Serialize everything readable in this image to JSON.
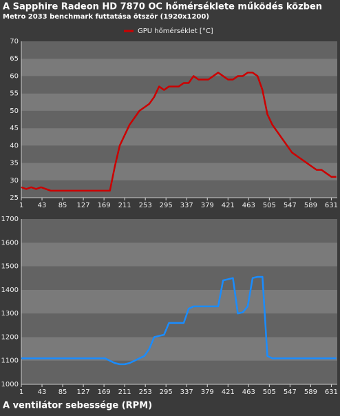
{
  "chart_data": [
    {
      "type": "line",
      "title": "A Sapphire Radeon HD 7870 OC hőmérséklete működés közben",
      "subtitle": "Metro 2033 benchmark futtatása ötször (1920x1200)",
      "x": [
        1,
        11,
        21,
        31,
        41,
        51,
        61,
        71,
        81,
        91,
        101,
        111,
        121,
        131,
        141,
        151,
        161,
        171,
        181,
        191,
        201,
        211,
        221,
        231,
        241,
        251,
        261,
        271,
        281,
        291,
        301,
        311,
        321,
        331,
        341,
        351,
        361,
        371,
        381,
        391,
        401,
        411,
        421,
        431,
        441,
        451,
        461,
        471,
        481,
        491,
        501,
        511,
        521,
        531,
        541,
        551,
        561,
        571,
        581,
        591,
        601,
        611,
        621,
        631,
        641
      ],
      "series": [
        {
          "name": "GPU hőmérséklet [°C]",
          "color": "#cc0000",
          "values": [
            28,
            27.5,
            28,
            27.5,
            28,
            27.5,
            27,
            27,
            27,
            27,
            27,
            27,
            27,
            27,
            27,
            27,
            27,
            27,
            27,
            34,
            40,
            43,
            46,
            48,
            50,
            51,
            52,
            54,
            57,
            56,
            57,
            57,
            57,
            58,
            58,
            60,
            59,
            59,
            59,
            60,
            61,
            60,
            59,
            59,
            60,
            60,
            61,
            61,
            60,
            56,
            49,
            46,
            44,
            42,
            40,
            38,
            37,
            36,
            35,
            34,
            33,
            33,
            32,
            31,
            31
          ]
        }
      ],
      "xlim": [
        1,
        643
      ],
      "xticks": [
        1,
        43,
        85,
        127,
        169,
        211,
        253,
        295,
        337,
        379,
        421,
        463,
        505,
        547,
        589,
        631
      ],
      "ylim": [
        25,
        70
      ],
      "yticks": [
        25,
        30,
        35,
        40,
        45,
        50,
        55,
        60,
        65,
        70
      ],
      "grid": true
    },
    {
      "type": "line",
      "title": "A ventilátor sebessége (RPM)",
      "color": "#1a8cff",
      "x": [
        1,
        11,
        21,
        31,
        41,
        51,
        61,
        71,
        81,
        91,
        101,
        111,
        121,
        131,
        141,
        151,
        161,
        171,
        181,
        191,
        201,
        211,
        221,
        231,
        241,
        251,
        261,
        271,
        281,
        291,
        301,
        311,
        321,
        331,
        341,
        351,
        361,
        371,
        381,
        391,
        401,
        411,
        421,
        431,
        441,
        451,
        461,
        471,
        481,
        491,
        501,
        511,
        521,
        531,
        541,
        551,
        561,
        571,
        581,
        591,
        601,
        611,
        621,
        631,
        641
      ],
      "values": [
        1110,
        1110,
        1110,
        1110,
        1110,
        1110,
        1110,
        1110,
        1110,
        1110,
        1110,
        1110,
        1110,
        1110,
        1110,
        1110,
        1110,
        1110,
        1100,
        1090,
        1085,
        1085,
        1090,
        1100,
        1110,
        1120,
        1150,
        1200,
        1205,
        1210,
        1260,
        1260,
        1260,
        1260,
        1320,
        1330,
        1330,
        1330,
        1330,
        1330,
        1330,
        1440,
        1445,
        1450,
        1300,
        1305,
        1330,
        1450,
        1455,
        1455,
        1120,
        1110,
        1110,
        1110,
        1110,
        1110,
        1110,
        1110,
        1110,
        1110,
        1110,
        1110,
        1110,
        1110,
        1110
      ],
      "xlim": [
        1,
        643
      ],
      "xticks": [
        1,
        43,
        85,
        127,
        169,
        211,
        253,
        295,
        337,
        379,
        421,
        463,
        505,
        547,
        589,
        631
      ],
      "ylim": [
        1000,
        1700
      ],
      "yticks": [
        1000,
        1100,
        1200,
        1300,
        1400,
        1500,
        1600,
        1700
      ],
      "grid": true
    }
  ]
}
